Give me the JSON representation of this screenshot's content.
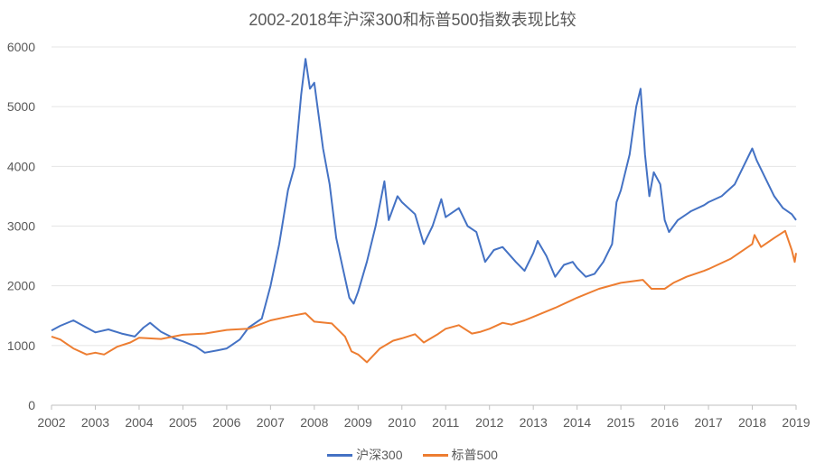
{
  "chart_data": {
    "type": "line",
    "title": "2002-2018年沪深300和标普500指数表现比较",
    "xlabel": "",
    "ylabel": "",
    "x": [
      "2002",
      "2003",
      "2004",
      "2005",
      "2006",
      "2007",
      "2008",
      "2009",
      "2010",
      "2011",
      "2012",
      "2013",
      "2014",
      "2015",
      "2016",
      "2017",
      "2018",
      "2019"
    ],
    "xlim": [
      2002,
      2019
    ],
    "ylim": [
      0,
      6000
    ],
    "yticks": [
      0,
      1000,
      2000,
      3000,
      4000,
      5000,
      6000
    ],
    "grid": true,
    "legend_position": "bottom",
    "series": [
      {
        "name": "沪深300",
        "color": "#4472C4",
        "points": [
          [
            2002.0,
            1250
          ],
          [
            2002.2,
            1330
          ],
          [
            2002.5,
            1420
          ],
          [
            2002.8,
            1300
          ],
          [
            2003.0,
            1220
          ],
          [
            2003.3,
            1270
          ],
          [
            2003.6,
            1200
          ],
          [
            2003.9,
            1150
          ],
          [
            2004.1,
            1300
          ],
          [
            2004.25,
            1380
          ],
          [
            2004.5,
            1230
          ],
          [
            2004.8,
            1120
          ],
          [
            2005.0,
            1070
          ],
          [
            2005.3,
            980
          ],
          [
            2005.5,
            880
          ],
          [
            2005.8,
            920
          ],
          [
            2006.0,
            950
          ],
          [
            2006.3,
            1100
          ],
          [
            2006.5,
            1300
          ],
          [
            2006.8,
            1450
          ],
          [
            2007.0,
            2000
          ],
          [
            2007.2,
            2700
          ],
          [
            2007.4,
            3600
          ],
          [
            2007.55,
            4000
          ],
          [
            2007.7,
            5200
          ],
          [
            2007.8,
            5800
          ],
          [
            2007.9,
            5300
          ],
          [
            2008.0,
            5400
          ],
          [
            2008.2,
            4300
          ],
          [
            2008.35,
            3700
          ],
          [
            2008.5,
            2800
          ],
          [
            2008.65,
            2300
          ],
          [
            2008.8,
            1800
          ],
          [
            2008.9,
            1700
          ],
          [
            2009.0,
            1900
          ],
          [
            2009.2,
            2400
          ],
          [
            2009.4,
            3000
          ],
          [
            2009.6,
            3750
          ],
          [
            2009.7,
            3100
          ],
          [
            2009.9,
            3500
          ],
          [
            2010.0,
            3400
          ],
          [
            2010.3,
            3200
          ],
          [
            2010.5,
            2700
          ],
          [
            2010.7,
            3000
          ],
          [
            2010.9,
            3450
          ],
          [
            2011.0,
            3150
          ],
          [
            2011.3,
            3300
          ],
          [
            2011.5,
            3000
          ],
          [
            2011.7,
            2900
          ],
          [
            2011.9,
            2400
          ],
          [
            2012.1,
            2600
          ],
          [
            2012.3,
            2650
          ],
          [
            2012.6,
            2400
          ],
          [
            2012.8,
            2250
          ],
          [
            2013.0,
            2550
          ],
          [
            2013.1,
            2750
          ],
          [
            2013.3,
            2500
          ],
          [
            2013.5,
            2150
          ],
          [
            2013.7,
            2350
          ],
          [
            2013.9,
            2400
          ],
          [
            2014.0,
            2300
          ],
          [
            2014.2,
            2150
          ],
          [
            2014.4,
            2200
          ],
          [
            2014.6,
            2400
          ],
          [
            2014.8,
            2700
          ],
          [
            2014.9,
            3400
          ],
          [
            2015.0,
            3600
          ],
          [
            2015.2,
            4200
          ],
          [
            2015.35,
            5000
          ],
          [
            2015.45,
            5300
          ],
          [
            2015.55,
            4200
          ],
          [
            2015.65,
            3500
          ],
          [
            2015.75,
            3900
          ],
          [
            2015.9,
            3700
          ],
          [
            2016.0,
            3100
          ],
          [
            2016.1,
            2900
          ],
          [
            2016.3,
            3100
          ],
          [
            2016.6,
            3250
          ],
          [
            2016.9,
            3350
          ],
          [
            2017.0,
            3400
          ],
          [
            2017.3,
            3500
          ],
          [
            2017.6,
            3700
          ],
          [
            2017.8,
            4000
          ],
          [
            2018.0,
            4300
          ],
          [
            2018.1,
            4100
          ],
          [
            2018.3,
            3800
          ],
          [
            2018.5,
            3500
          ],
          [
            2018.7,
            3300
          ],
          [
            2018.9,
            3200
          ],
          [
            2019.0,
            3100
          ]
        ]
      },
      {
        "name": "标普500",
        "color": "#ED7D31",
        "points": [
          [
            2002.0,
            1150
          ],
          [
            2002.2,
            1100
          ],
          [
            2002.5,
            950
          ],
          [
            2002.8,
            850
          ],
          [
            2003.0,
            880
          ],
          [
            2003.2,
            850
          ],
          [
            2003.5,
            980
          ],
          [
            2003.8,
            1050
          ],
          [
            2004.0,
            1130
          ],
          [
            2004.5,
            1110
          ],
          [
            2005.0,
            1180
          ],
          [
            2005.5,
            1200
          ],
          [
            2006.0,
            1260
          ],
          [
            2006.5,
            1280
          ],
          [
            2007.0,
            1420
          ],
          [
            2007.5,
            1500
          ],
          [
            2007.8,
            1540
          ],
          [
            2008.0,
            1400
          ],
          [
            2008.4,
            1370
          ],
          [
            2008.7,
            1150
          ],
          [
            2008.85,
            900
          ],
          [
            2009.0,
            850
          ],
          [
            2009.2,
            720
          ],
          [
            2009.5,
            950
          ],
          [
            2009.8,
            1080
          ],
          [
            2010.0,
            1120
          ],
          [
            2010.3,
            1190
          ],
          [
            2010.5,
            1050
          ],
          [
            2010.8,
            1180
          ],
          [
            2011.0,
            1280
          ],
          [
            2011.3,
            1340
          ],
          [
            2011.6,
            1200
          ],
          [
            2011.8,
            1230
          ],
          [
            2012.0,
            1280
          ],
          [
            2012.3,
            1380
          ],
          [
            2012.5,
            1350
          ],
          [
            2012.8,
            1420
          ],
          [
            2013.0,
            1480
          ],
          [
            2013.5,
            1630
          ],
          [
            2014.0,
            1800
          ],
          [
            2014.5,
            1950
          ],
          [
            2015.0,
            2050
          ],
          [
            2015.5,
            2100
          ],
          [
            2015.7,
            1950
          ],
          [
            2016.0,
            1950
          ],
          [
            2016.2,
            2050
          ],
          [
            2016.5,
            2150
          ],
          [
            2016.9,
            2250
          ],
          [
            2017.0,
            2280
          ],
          [
            2017.5,
            2450
          ],
          [
            2018.0,
            2700
          ],
          [
            2018.05,
            2850
          ],
          [
            2018.2,
            2650
          ],
          [
            2018.5,
            2800
          ],
          [
            2018.75,
            2920
          ],
          [
            2018.9,
            2600
          ],
          [
            2018.97,
            2400
          ],
          [
            2019.0,
            2550
          ]
        ]
      }
    ]
  }
}
